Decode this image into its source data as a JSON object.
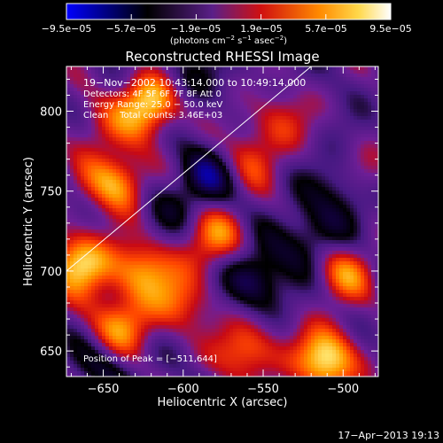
{
  "chart_data": {
    "type": "heatmap",
    "title": "Reconstructed RHESSI Image",
    "xlabel": "Heliocentric X (arcsec)",
    "ylabel": "Heliocentric Y (arcsec)",
    "xlim": [
      -673,
      -478
    ],
    "ylim": [
      634,
      828
    ],
    "x_ticks": [
      -650,
      -600,
      -550,
      -500
    ],
    "x_tick_labels": [
      "−650",
      "−600",
      "−550",
      "−500"
    ],
    "y_ticks": [
      650,
      700,
      750,
      800
    ],
    "y_tick_labels": [
      "650",
      "700",
      "750",
      "800"
    ],
    "colorbar": {
      "ticks": [
        "−9.5e−05",
        "−5.7e−05",
        "−1.9e−05",
        "1.9e−05",
        "5.7e−05",
        "9.5e−05"
      ],
      "unit_parts": [
        "(photons cm",
        "−2",
        " s",
        "−1",
        " asec",
        "−2",
        ")"
      ],
      "colors": [
        "#0000ff",
        "#000000",
        "#6a2a90",
        "#ff2000",
        "#ffa000",
        "#ffffff"
      ]
    },
    "annotations": [
      "19−Nov−2002 10:43:14.000 to 10:49:14.000",
      "Detectors: 4F 5F 6F 7F 8F  Att 0",
      "Energy Range: 25.0 − 50.0 keV",
      "Clean    Total counts: 3.46E+03"
    ],
    "peak_label": "Position of Peak = [−511,644]",
    "peak": [
      -511,
      644
    ],
    "limb_line": [
      [
        -673,
        700
      ],
      [
        -520,
        828
      ]
    ],
    "blobs": [
      [
        -620,
        805,
        1.0
      ],
      [
        -640,
        755,
        0.85
      ],
      [
        -665,
        705,
        0.9
      ],
      [
        -625,
        700,
        0.75
      ],
      [
        -580,
        720,
        0.6
      ],
      [
        -560,
        770,
        0.45
      ],
      [
        -510,
        644,
        1.0
      ],
      [
        -560,
        650,
        0.65
      ],
      [
        -640,
        665,
        0.7
      ],
      [
        -500,
        700,
        0.6
      ],
      [
        -600,
        680,
        0.5
      ],
      [
        -540,
        795,
        0.4
      ],
      [
        -485,
        760,
        0.35
      ],
      [
        -655,
        790,
        0.35
      ],
      [
        -585,
        760,
        -0.6
      ],
      [
        -555,
        695,
        -0.65
      ],
      [
        -500,
        750,
        -0.45
      ],
      [
        -600,
        820,
        -0.35
      ],
      [
        -650,
        640,
        -0.4
      ],
      [
        -520,
        720,
        -0.5
      ],
      [
        -615,
        740,
        -0.3
      ]
    ],
    "timestamp": "17−Apr−2013 19:13"
  }
}
